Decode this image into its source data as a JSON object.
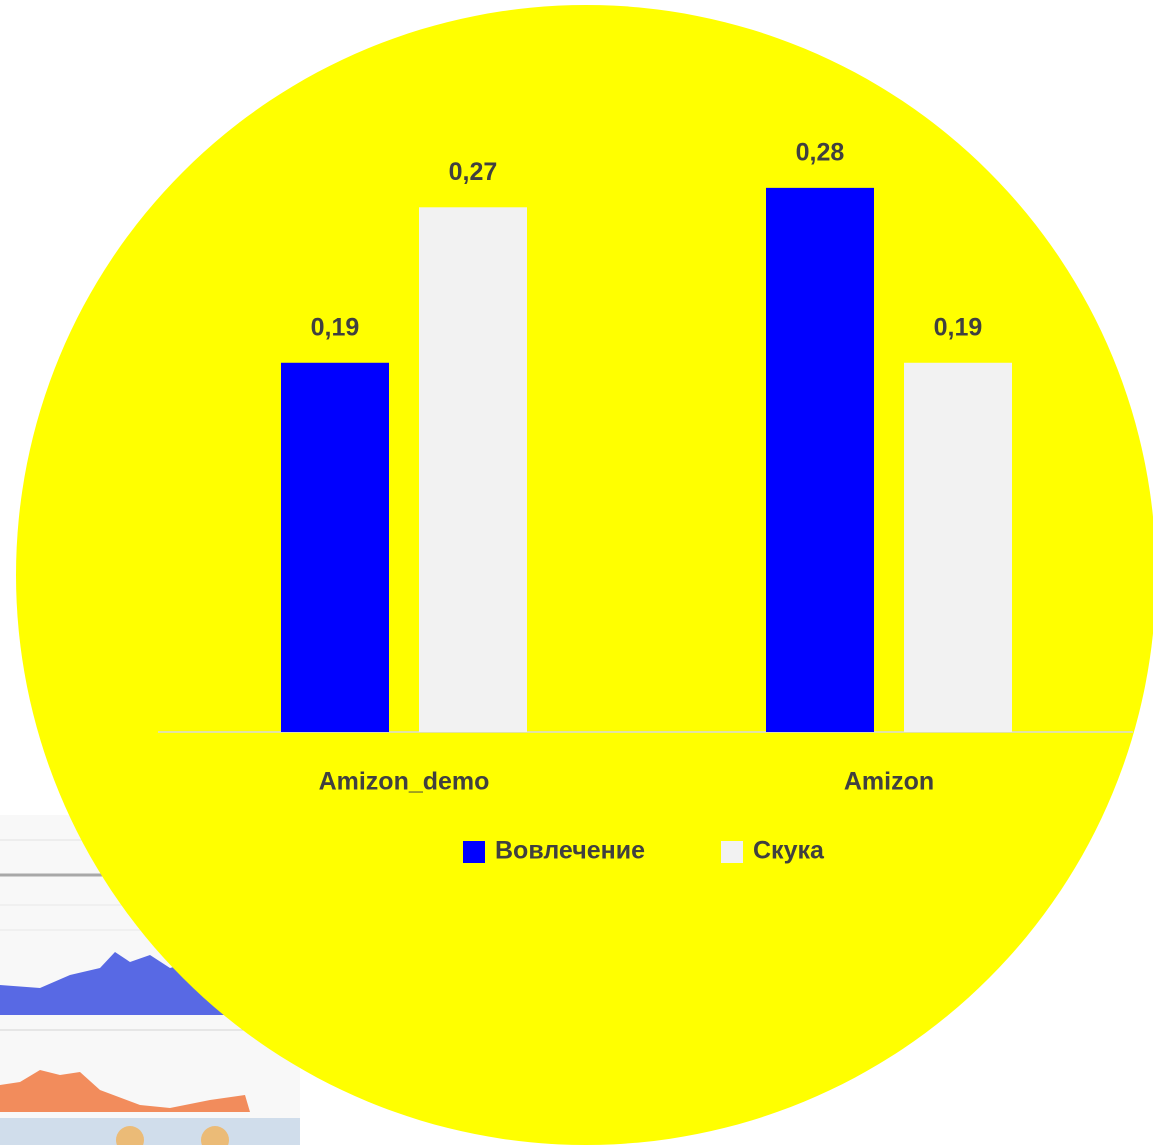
{
  "chart_data": {
    "type": "bar",
    "categories": [
      "Amizon_demo",
      "Amizon"
    ],
    "series": [
      {
        "name": "Вовлечение",
        "color": "#0000ff",
        "values": [
          0.19,
          0.28
        ],
        "value_labels": [
          "0,19",
          "0,28"
        ]
      },
      {
        "name": "Скука",
        "color": "#f2f2f2",
        "values": [
          0.27,
          0.19
        ],
        "value_labels": [
          "0,27",
          "0,19"
        ]
      }
    ],
    "ylim": [
      0,
      0.3
    ]
  }
}
